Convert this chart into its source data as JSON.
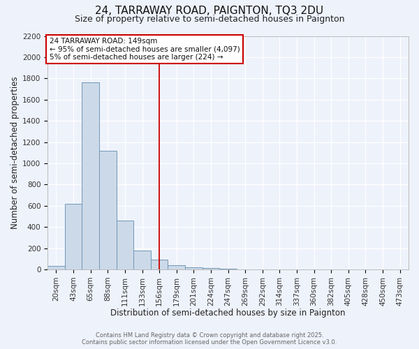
{
  "title": "24, TARRAWAY ROAD, PAIGNTON, TQ3 2DU",
  "subtitle": "Size of property relative to semi-detached houses in Paignton",
  "xlabel": "Distribution of semi-detached houses by size in Paignton",
  "ylabel": "Number of semi-detached properties",
  "bin_labels": [
    "20sqm",
    "43sqm",
    "65sqm",
    "88sqm",
    "111sqm",
    "133sqm",
    "156sqm",
    "179sqm",
    "201sqm",
    "224sqm",
    "247sqm",
    "269sqm",
    "292sqm",
    "314sqm",
    "337sqm",
    "360sqm",
    "382sqm",
    "405sqm",
    "428sqm",
    "450sqm",
    "473sqm"
  ],
  "bin_values": [
    30,
    620,
    1760,
    1120,
    460,
    180,
    90,
    40,
    20,
    10,
    5,
    2,
    1,
    1,
    0,
    0,
    0,
    0,
    0,
    0,
    0
  ],
  "bar_color": "#ccd9e8",
  "bar_edge_color": "#7098b8",
  "vline_x_idx": 6,
  "vline_color": "#cc0000",
  "ylim": [
    0,
    2200
  ],
  "yticks": [
    0,
    200,
    400,
    600,
    800,
    1000,
    1200,
    1400,
    1600,
    1800,
    2000,
    2200
  ],
  "annotation_title": "24 TARRAWAY ROAD: 149sqm",
  "annotation_line1": "← 95% of semi-detached houses are smaller (4,097)",
  "annotation_line2": "5% of semi-detached houses are larger (224) →",
  "annotation_box_color": "#ffffff",
  "annotation_box_edge": "#cc0000",
  "footer1": "Contains HM Land Registry data © Crown copyright and database right 2025.",
  "footer2": "Contains public sector information licensed under the Open Government Licence v3.0.",
  "background_color": "#eef2fb",
  "grid_color": "#ffffff",
  "title_fontsize": 11,
  "subtitle_fontsize": 9,
  "axis_label_fontsize": 8.5,
  "tick_fontsize": 7.5,
  "footer_fontsize": 6
}
